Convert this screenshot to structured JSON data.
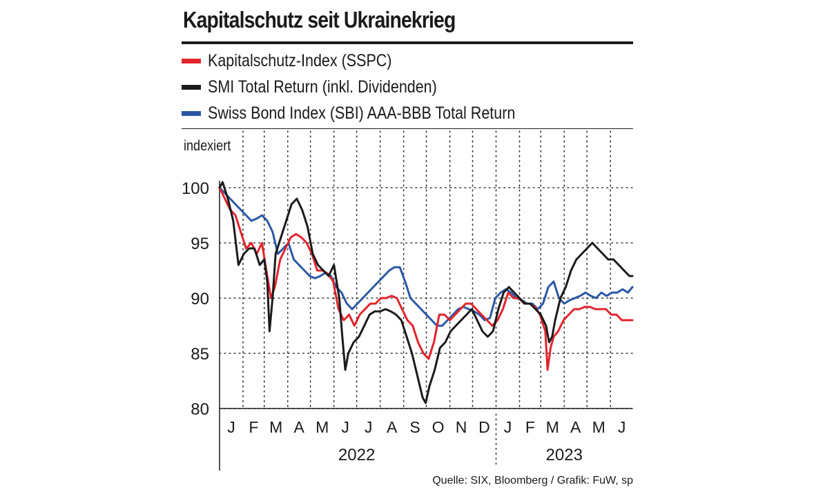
{
  "chart_data": {
    "type": "line",
    "title": "Kapitalschutz seit Ukrainekrieg",
    "ylabel": "indexiert",
    "ylim": [
      80,
      100
    ],
    "yticks": [
      80,
      85,
      90,
      95,
      100
    ],
    "xlim": [
      "2022-01-01",
      "2023-06-30"
    ],
    "month_labels": [
      "J",
      "F",
      "M",
      "A",
      "M",
      "J",
      "J",
      "A",
      "S",
      "O",
      "N",
      "D",
      "J",
      "F",
      "M",
      "A",
      "M",
      "J"
    ],
    "year_labels": [
      {
        "label": "2022",
        "center": "2022-07-01"
      },
      {
        "label": "2023",
        "center": "2023-04-01"
      }
    ],
    "year_boundary": "2023-01-01",
    "grid": true,
    "legend_position": "top",
    "series": [
      {
        "name": "Kapitalschutz-Index (SSPC)",
        "color": "#e3232b",
        "x": [
          "2022-01-01",
          "2022-01-08",
          "2022-01-15",
          "2022-01-22",
          "2022-01-29",
          "2022-02-05",
          "2022-02-12",
          "2022-02-19",
          "2022-02-26",
          "2022-03-05",
          "2022-03-10",
          "2022-03-15",
          "2022-03-22",
          "2022-03-29",
          "2022-04-05",
          "2022-04-12",
          "2022-04-19",
          "2022-04-26",
          "2022-05-03",
          "2022-05-10",
          "2022-05-17",
          "2022-05-24",
          "2022-05-31",
          "2022-06-07",
          "2022-06-14",
          "2022-06-21",
          "2022-06-28",
          "2022-07-05",
          "2022-07-12",
          "2022-07-19",
          "2022-07-26",
          "2022-08-02",
          "2022-08-09",
          "2022-08-16",
          "2022-08-23",
          "2022-08-30",
          "2022-09-06",
          "2022-09-13",
          "2022-09-20",
          "2022-09-27",
          "2022-10-04",
          "2022-10-11",
          "2022-10-18",
          "2022-10-25",
          "2022-11-01",
          "2022-11-08",
          "2022-11-15",
          "2022-11-22",
          "2022-11-29",
          "2022-12-06",
          "2022-12-13",
          "2022-12-20",
          "2022-12-27",
          "2023-01-03",
          "2023-01-10",
          "2023-01-17",
          "2023-01-24",
          "2023-01-31",
          "2023-02-07",
          "2023-02-14",
          "2023-02-21",
          "2023-02-28",
          "2023-03-07",
          "2023-03-10",
          "2023-03-14",
          "2023-03-18",
          "2023-03-24",
          "2023-03-31",
          "2023-04-07",
          "2023-04-14",
          "2023-04-21",
          "2023-04-28",
          "2023-05-05",
          "2023-05-12",
          "2023-05-19",
          "2023-05-26",
          "2023-06-02",
          "2023-06-09",
          "2023-06-16",
          "2023-06-23",
          "2023-06-30"
        ],
        "y": [
          100,
          99,
          98,
          97.5,
          96,
          94.5,
          95,
          94,
          95,
          92,
          90,
          91,
          93.5,
          94.5,
          95.5,
          95.8,
          95.5,
          95,
          94,
          92.5,
          92.5,
          92.2,
          91.5,
          89,
          88,
          88.5,
          87.5,
          88.5,
          89,
          89.5,
          89.5,
          90,
          90,
          90.2,
          90,
          89,
          88,
          87.5,
          86,
          85,
          84.5,
          86,
          88.5,
          88.5,
          88,
          88.5,
          89,
          89.5,
          89.5,
          89,
          88.5,
          88,
          87.5,
          88,
          89,
          90.5,
          90,
          90,
          89.5,
          89.5,
          89.2,
          88.5,
          87,
          83.5,
          85.5,
          86.5,
          87,
          88,
          88.5,
          89,
          89,
          89.2,
          89.2,
          89,
          89,
          89,
          88.5,
          88.5,
          88,
          88,
          88
        ]
      },
      {
        "name": "SMI Total Return (inkl. Dividenden)",
        "color": "#1a1a1a",
        "x": [
          "2022-01-01",
          "2022-01-05",
          "2022-01-12",
          "2022-01-19",
          "2022-01-26",
          "2022-02-02",
          "2022-02-09",
          "2022-02-16",
          "2022-02-23",
          "2022-03-01",
          "2022-03-05",
          "2022-03-08",
          "2022-03-12",
          "2022-03-16",
          "2022-03-23",
          "2022-03-30",
          "2022-04-06",
          "2022-04-13",
          "2022-04-20",
          "2022-04-27",
          "2022-05-04",
          "2022-05-11",
          "2022-05-18",
          "2022-05-25",
          "2022-06-01",
          "2022-06-08",
          "2022-06-12",
          "2022-06-16",
          "2022-06-20",
          "2022-06-27",
          "2022-07-04",
          "2022-07-11",
          "2022-07-18",
          "2022-07-25",
          "2022-08-01",
          "2022-08-08",
          "2022-08-15",
          "2022-08-22",
          "2022-08-29",
          "2022-09-05",
          "2022-09-12",
          "2022-09-19",
          "2022-09-26",
          "2022-09-30",
          "2022-10-05",
          "2022-10-12",
          "2022-10-19",
          "2022-10-26",
          "2022-11-02",
          "2022-11-09",
          "2022-11-16",
          "2022-11-23",
          "2022-11-30",
          "2022-12-07",
          "2022-12-14",
          "2022-12-21",
          "2022-12-28",
          "2023-01-04",
          "2023-01-11",
          "2023-01-18",
          "2023-01-25",
          "2023-02-01",
          "2023-02-08",
          "2023-02-15",
          "2023-02-22",
          "2023-03-01",
          "2023-03-08",
          "2023-03-12",
          "2023-03-16",
          "2023-03-20",
          "2023-03-27",
          "2023-04-03",
          "2023-04-10",
          "2023-04-17",
          "2023-04-24",
          "2023-05-01",
          "2023-05-08",
          "2023-05-15",
          "2023-05-22",
          "2023-05-29",
          "2023-06-05",
          "2023-06-12",
          "2023-06-19",
          "2023-06-26",
          "2023-06-30"
        ],
        "y": [
          100,
          100.5,
          99,
          97,
          93,
          94,
          94.5,
          94.5,
          93,
          93.5,
          91.5,
          87,
          90,
          94,
          95.5,
          97,
          98.5,
          99,
          98,
          96.5,
          94,
          93,
          92.5,
          92,
          93,
          90,
          86.5,
          83.5,
          85,
          86,
          86.5,
          87.5,
          88.5,
          88.8,
          88.8,
          89,
          88.8,
          88.5,
          88,
          86.5,
          85,
          83,
          81,
          80.5,
          82,
          83.5,
          85.5,
          86,
          87,
          87.5,
          88,
          88.5,
          89,
          88,
          87,
          86.5,
          87,
          89,
          90.5,
          91,
          90.5,
          90,
          89.5,
          89.5,
          89,
          88.5,
          87.5,
          86,
          86.5,
          88,
          90,
          91,
          92.5,
          93.5,
          94,
          94.5,
          95,
          94.5,
          94,
          93.5,
          93.5,
          93,
          92.5,
          92,
          92
        ]
      },
      {
        "name": "Swiss Bond Index (SBI) AAA-BBB Total Return",
        "color": "#2a57a6",
        "x": [
          "2022-01-01",
          "2022-01-08",
          "2022-01-15",
          "2022-01-22",
          "2022-01-29",
          "2022-02-05",
          "2022-02-12",
          "2022-02-19",
          "2022-02-26",
          "2022-03-05",
          "2022-03-12",
          "2022-03-19",
          "2022-03-26",
          "2022-04-02",
          "2022-04-09",
          "2022-04-16",
          "2022-04-23",
          "2022-04-30",
          "2022-05-07",
          "2022-05-14",
          "2022-05-21",
          "2022-05-28",
          "2022-06-04",
          "2022-06-11",
          "2022-06-18",
          "2022-06-25",
          "2022-07-02",
          "2022-07-09",
          "2022-07-16",
          "2022-07-23",
          "2022-07-30",
          "2022-08-06",
          "2022-08-13",
          "2022-08-20",
          "2022-08-27",
          "2022-09-03",
          "2022-09-10",
          "2022-09-17",
          "2022-09-24",
          "2022-10-01",
          "2022-10-08",
          "2022-10-15",
          "2022-10-22",
          "2022-10-29",
          "2022-11-05",
          "2022-11-12",
          "2022-11-19",
          "2022-11-26",
          "2022-12-03",
          "2022-12-10",
          "2022-12-17",
          "2022-12-24",
          "2022-12-31",
          "2023-01-07",
          "2023-01-14",
          "2023-01-21",
          "2023-01-28",
          "2023-02-04",
          "2023-02-11",
          "2023-02-18",
          "2023-02-25",
          "2023-03-04",
          "2023-03-11",
          "2023-03-18",
          "2023-03-25",
          "2023-04-01",
          "2023-04-08",
          "2023-04-15",
          "2023-04-22",
          "2023-04-29",
          "2023-05-06",
          "2023-05-13",
          "2023-05-20",
          "2023-05-27",
          "2023-06-03",
          "2023-06-10",
          "2023-06-17",
          "2023-06-24",
          "2023-06-30"
        ],
        "y": [
          100,
          99.5,
          99,
          98.5,
          98,
          97.5,
          97,
          97.2,
          97.5,
          97,
          96,
          94,
          94.5,
          95,
          93.5,
          93,
          92.5,
          92,
          91.8,
          92,
          92.3,
          92,
          91,
          90.5,
          89.5,
          89,
          89.5,
          90,
          90.5,
          91,
          91.5,
          92,
          92.5,
          92.8,
          92.8,
          91.5,
          90,
          89.5,
          89,
          88.5,
          88,
          87.5,
          87.5,
          88,
          88.5,
          89,
          89.2,
          89,
          88.8,
          88.5,
          88,
          88.2,
          90,
          90.5,
          90.8,
          90.5,
          90,
          89.8,
          89.5,
          89.5,
          89,
          89.5,
          91,
          91.5,
          90,
          89.5,
          89.8,
          90,
          90.2,
          90.5,
          90.2,
          90,
          90.5,
          90.2,
          90.5,
          90.5,
          90.8,
          90.5,
          91
        ]
      }
    ]
  },
  "legend": [
    {
      "label": "Kapitalschutz-Index (SSPC)",
      "color": "#e3232b"
    },
    {
      "label": "SMI Total Return (inkl. Dividenden)",
      "color": "#1a1a1a"
    },
    {
      "label": "Swiss Bond Index (SBI) AAA-BBB Total Return",
      "color": "#2a57a6"
    }
  ],
  "source": "Quelle: SIX, Bloomberg / Grafik: FuW, sp"
}
